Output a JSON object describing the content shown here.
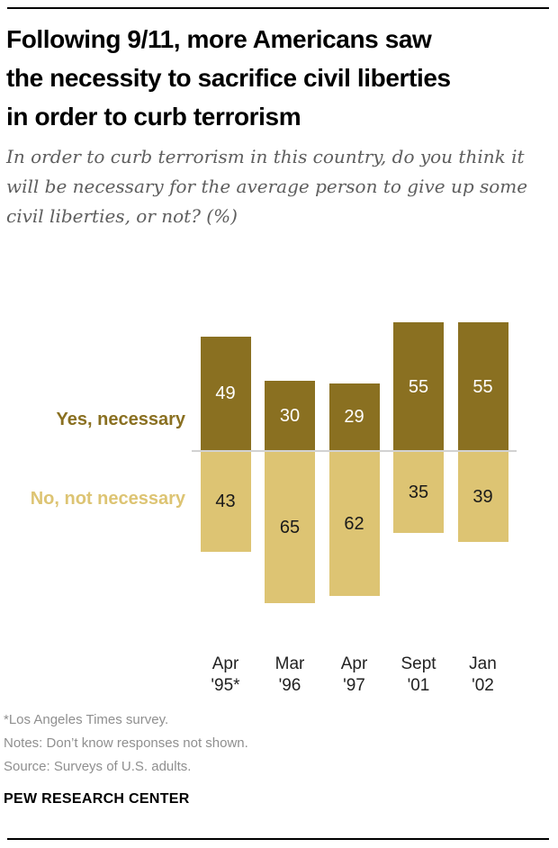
{
  "header": {
    "title_lines": [
      "Following 9/11, more Americans saw",
      "the necessity to sacrifice civil liberties",
      "in order to curb terrorism"
    ],
    "subtitle_lines": [
      "In order to curb terrorism in this country, do you think it",
      "will be necessary for the average person to give up some",
      "civil liberties, or not? (%)"
    ]
  },
  "chart_data": {
    "type": "bar",
    "subtype": "diverging-vertical",
    "value_unit": "%",
    "categories": [
      {
        "line1": "Apr",
        "line2": "'95*"
      },
      {
        "line1": "Mar",
        "line2": "'96"
      },
      {
        "line1": "Apr",
        "line2": "'97"
      },
      {
        "line1": "Sept",
        "line2": "'01"
      },
      {
        "line1": "Jan",
        "line2": "'02"
      }
    ],
    "series": [
      {
        "name": "Yes, necessary",
        "direction": "up",
        "color": "#8A7021",
        "label_color": "#FFFFFF",
        "values": [
          49,
          30,
          29,
          55,
          55
        ]
      },
      {
        "name": "No, not necessary",
        "direction": "down",
        "color": "#DDC473",
        "label_color": "#1A1A1A",
        "values": [
          43,
          65,
          62,
          35,
          39
        ]
      }
    ],
    "baseline_color": "#D2D2D2",
    "legend_position": "left",
    "notes_shown": "Don't know responses not shown"
  },
  "footer": {
    "footnote": "*Los Angeles Times survey.",
    "notes": "Notes: Don’t know responses not shown.",
    "source": "Source: Surveys of U.S. adults.",
    "brand": "PEW RESEARCH CENTER"
  }
}
